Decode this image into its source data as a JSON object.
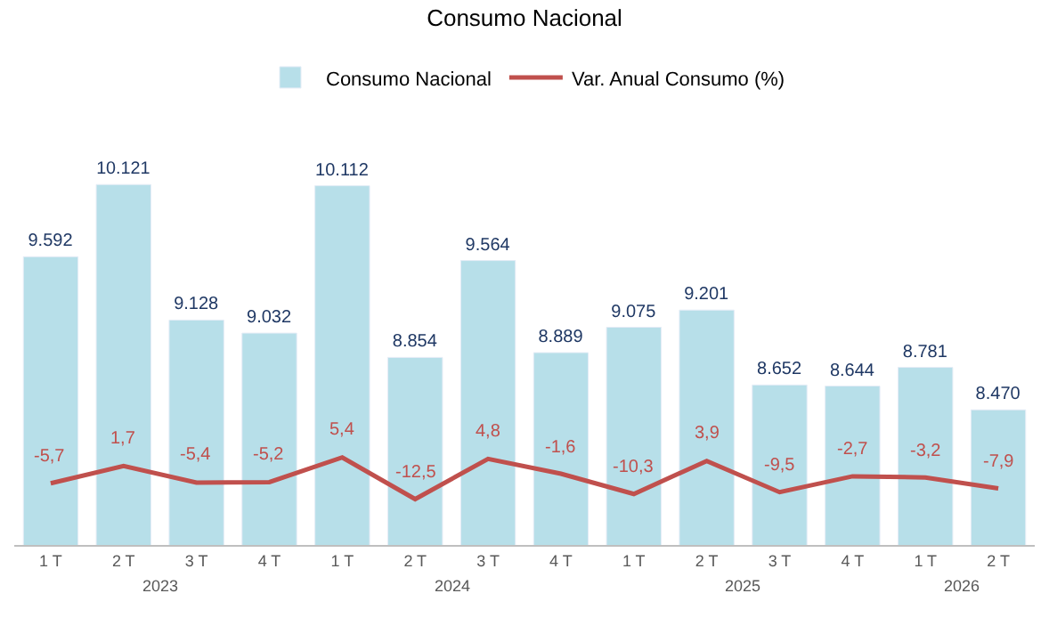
{
  "chart_data": {
    "type": "bar",
    "title": "Consumo Nacional",
    "categories": [
      "1 T",
      "2 T",
      "3 T",
      "4 T",
      "1 T",
      "2 T",
      "3 T",
      "4 T",
      "1 T",
      "2 T",
      "3 T",
      "4 T",
      "1 T",
      "2 T"
    ],
    "series": [
      {
        "name": "Consumo Nacional",
        "color": "#b7dfe9",
        "values": [
          9592,
          10121,
          9128,
          9032,
          10112,
          8854,
          9564,
          8889,
          9075,
          9201,
          8652,
          8644,
          8781,
          8470
        ],
        "value_labels": [
          "9.592",
          "10.121",
          "9.128",
          "9.032",
          "10.112",
          "8.854",
          "9.564",
          "8.889",
          "9.075",
          "9.201",
          "8.652",
          "8.644",
          "8.781",
          "8.470"
        ]
      },
      {
        "name": "Var. Anual Consumo (%)",
        "type": "line",
        "axis": "y2",
        "color": "#c0504d",
        "values": [
          -5.7,
          1.7,
          -5.4,
          -5.2,
          5.4,
          -12.5,
          4.8,
          -1.6,
          -10.3,
          3.9,
          -9.5,
          -2.7,
          -3.2,
          -7.9
        ],
        "value_labels": [
          "-5,7",
          "1,7",
          "-5,4",
          "-5,2",
          "5,4",
          "-12,5",
          "4,8",
          "-1,6",
          "-10,3",
          "3,9",
          "-9,5",
          "-2,7",
          "-3,2",
          "-7,9"
        ]
      }
    ],
    "annotations": [
      "2023",
      "2024",
      "2025",
      "2026"
    ],
    "legend": "top",
    "marker": "none",
    "line_style": "solid"
  }
}
